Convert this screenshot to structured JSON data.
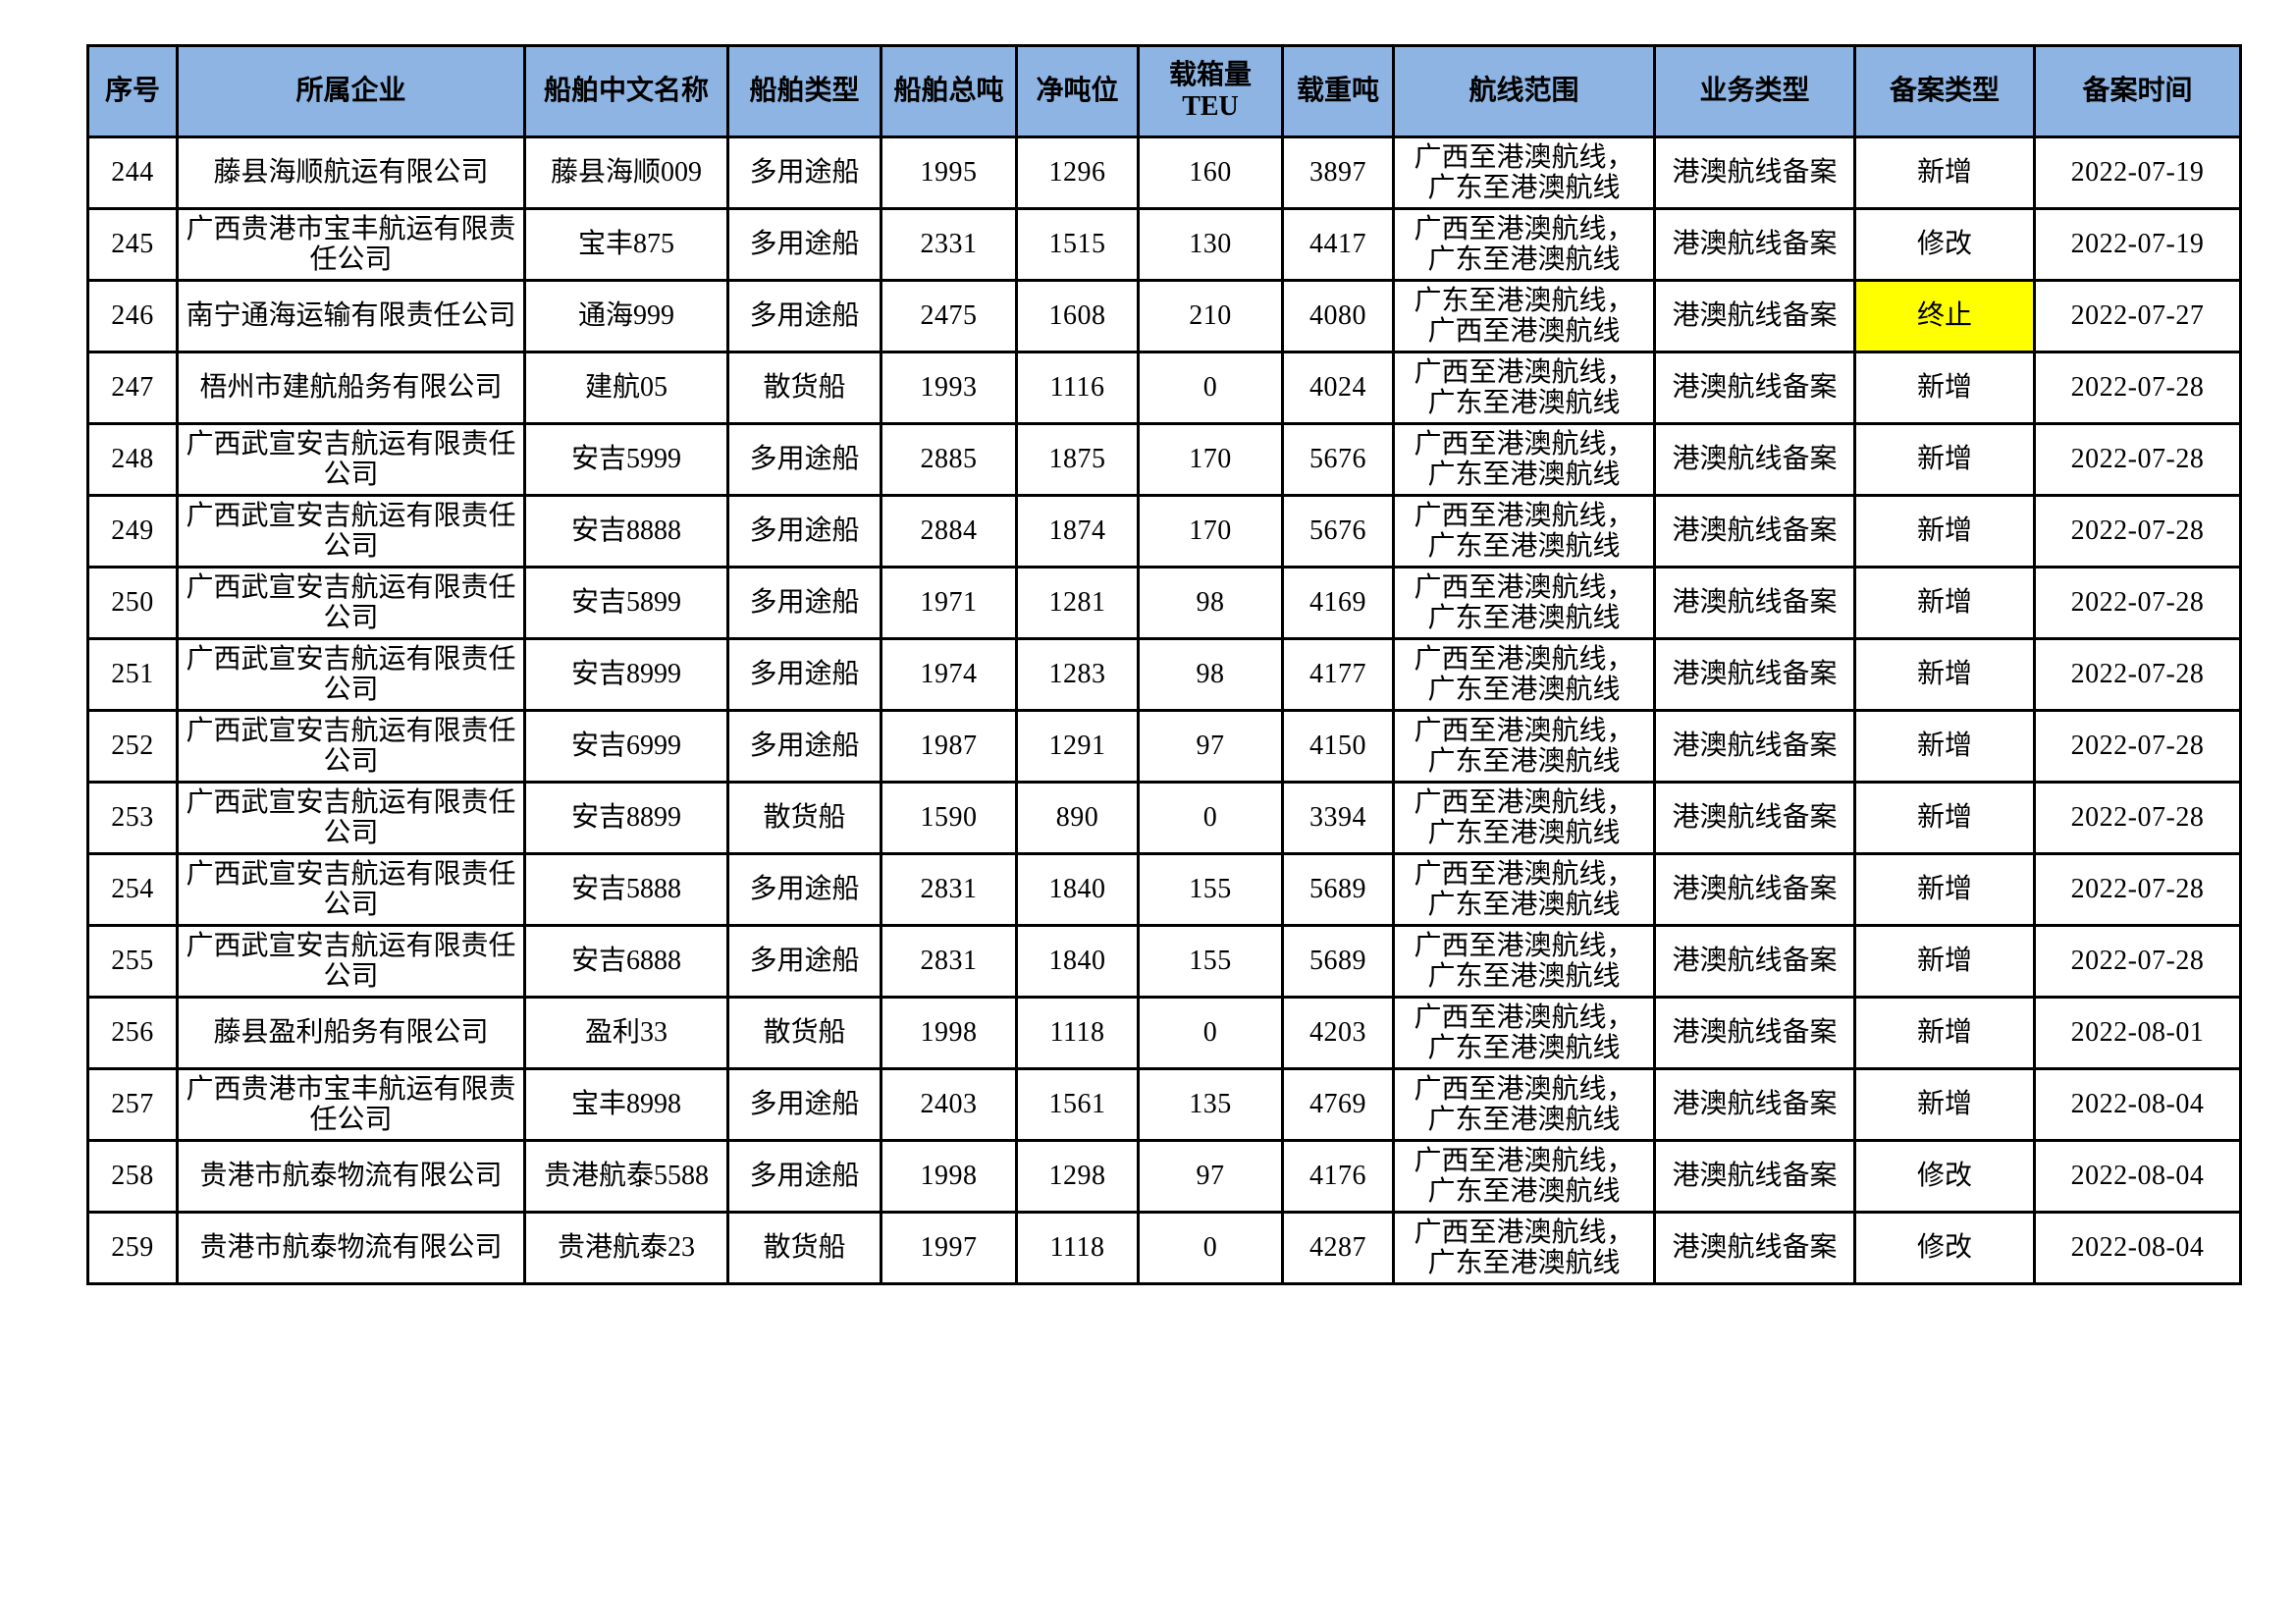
{
  "colors": {
    "header_background": "#8DB4E2",
    "highlight_yellow": "#FFFF00",
    "border": "#000000",
    "text": "#000000",
    "page_background": "#FFFFFF"
  },
  "table": {
    "headers": [
      "序号",
      "所属企业",
      "船舶中文名称",
      "船舶类型",
      "船舶总吨",
      "净吨位",
      "载箱量TEU",
      "载重吨",
      "航线范围",
      "业务类型",
      "备案类型",
      "备案时间"
    ],
    "rows": [
      [
        "244",
        "藤县海顺航运有限公司",
        "藤县海顺009",
        "多用途船",
        "1995",
        "1296",
        "160",
        "3897",
        "广西至港澳航线，\n广东至港澳航线",
        "港澳航线备案",
        "新增",
        "2022-07-19"
      ],
      [
        "245",
        "广西贵港市宝丰航运有限责任公司",
        "宝丰875",
        "多用途船",
        "2331",
        "1515",
        "130",
        "4417",
        "广西至港澳航线，\n广东至港澳航线",
        "港澳航线备案",
        "修改",
        "2022-07-19"
      ],
      [
        "246",
        "南宁通海运输有限责任公司",
        "通海999",
        "多用途船",
        "2475",
        "1608",
        "210",
        "4080",
        "广东至港澳航线，\n广西至港澳航线",
        "港澳航线备案",
        "终止",
        "2022-07-27"
      ],
      [
        "247",
        "梧州市建航船务有限公司",
        "建航05",
        "散货船",
        "1993",
        "1116",
        "0",
        "4024",
        "广西至港澳航线，\n广东至港澳航线",
        "港澳航线备案",
        "新增",
        "2022-07-28"
      ],
      [
        "248",
        "广西武宣安吉航运有限责任公司",
        "安吉5999",
        "多用途船",
        "2885",
        "1875",
        "170",
        "5676",
        "广西至港澳航线，\n广东至港澳航线",
        "港澳航线备案",
        "新增",
        "2022-07-28"
      ],
      [
        "249",
        "广西武宣安吉航运有限责任公司",
        "安吉8888",
        "多用途船",
        "2884",
        "1874",
        "170",
        "5676",
        "广西至港澳航线，\n广东至港澳航线",
        "港澳航线备案",
        "新增",
        "2022-07-28"
      ],
      [
        "250",
        "广西武宣安吉航运有限责任公司",
        "安吉5899",
        "多用途船",
        "1971",
        "1281",
        "98",
        "4169",
        "广西至港澳航线，\n广东至港澳航线",
        "港澳航线备案",
        "新增",
        "2022-07-28"
      ],
      [
        "251",
        "广西武宣安吉航运有限责任公司",
        "安吉8999",
        "多用途船",
        "1974",
        "1283",
        "98",
        "4177",
        "广西至港澳航线，\n广东至港澳航线",
        "港澳航线备案",
        "新增",
        "2022-07-28"
      ],
      [
        "252",
        "广西武宣安吉航运有限责任公司",
        "安吉6999",
        "多用途船",
        "1987",
        "1291",
        "97",
        "4150",
        "广西至港澳航线，\n广东至港澳航线",
        "港澳航线备案",
        "新增",
        "2022-07-28"
      ],
      [
        "253",
        "广西武宣安吉航运有限责任公司",
        "安吉8899",
        "散货船",
        "1590",
        "890",
        "0",
        "3394",
        "广西至港澳航线，\n广东至港澳航线",
        "港澳航线备案",
        "新增",
        "2022-07-28"
      ],
      [
        "254",
        "广西武宣安吉航运有限责任公司",
        "安吉5888",
        "多用途船",
        "2831",
        "1840",
        "155",
        "5689",
        "广西至港澳航线，\n广东至港澳航线",
        "港澳航线备案",
        "新增",
        "2022-07-28"
      ],
      [
        "255",
        "广西武宣安吉航运有限责任公司",
        "安吉6888",
        "多用途船",
        "2831",
        "1840",
        "155",
        "5689",
        "广西至港澳航线，\n广东至港澳航线",
        "港澳航线备案",
        "新增",
        "2022-07-28"
      ],
      [
        "256",
        "藤县盈利船务有限公司",
        "盈利33",
        "散货船",
        "1998",
        "1118",
        "0",
        "4203",
        "广西至港澳航线，\n广东至港澳航线",
        "港澳航线备案",
        "新增",
        "2022-08-01"
      ],
      [
        "257",
        "广西贵港市宝丰航运有限责任公司",
        "宝丰8998",
        "多用途船",
        "2403",
        "1561",
        "135",
        "4769",
        "广西至港澳航线，\n广东至港澳航线",
        "港澳航线备案",
        "新增",
        "2022-08-04"
      ],
      [
        "258",
        "贵港市航泰物流有限公司",
        "贵港航泰5588",
        "多用途船",
        "1998",
        "1298",
        "97",
        "4176",
        "广西至港澳航线，\n广东至港澳航线",
        "港澳航线备案",
        "修改",
        "2022-08-04"
      ],
      [
        "259",
        "贵港市航泰物流有限公司",
        "贵港航泰23",
        "散货船",
        "1997",
        "1118",
        "0",
        "4287",
        "广西至港澳航线，\n广东至港澳航线",
        "港澳航线备案",
        "修改",
        "2022-08-04"
      ]
    ],
    "highlighted_cell": {
      "row_value": "246",
      "column_header": "备案类型",
      "row_index": 2,
      "col_index": 10,
      "color": "#FFFF00"
    }
  }
}
